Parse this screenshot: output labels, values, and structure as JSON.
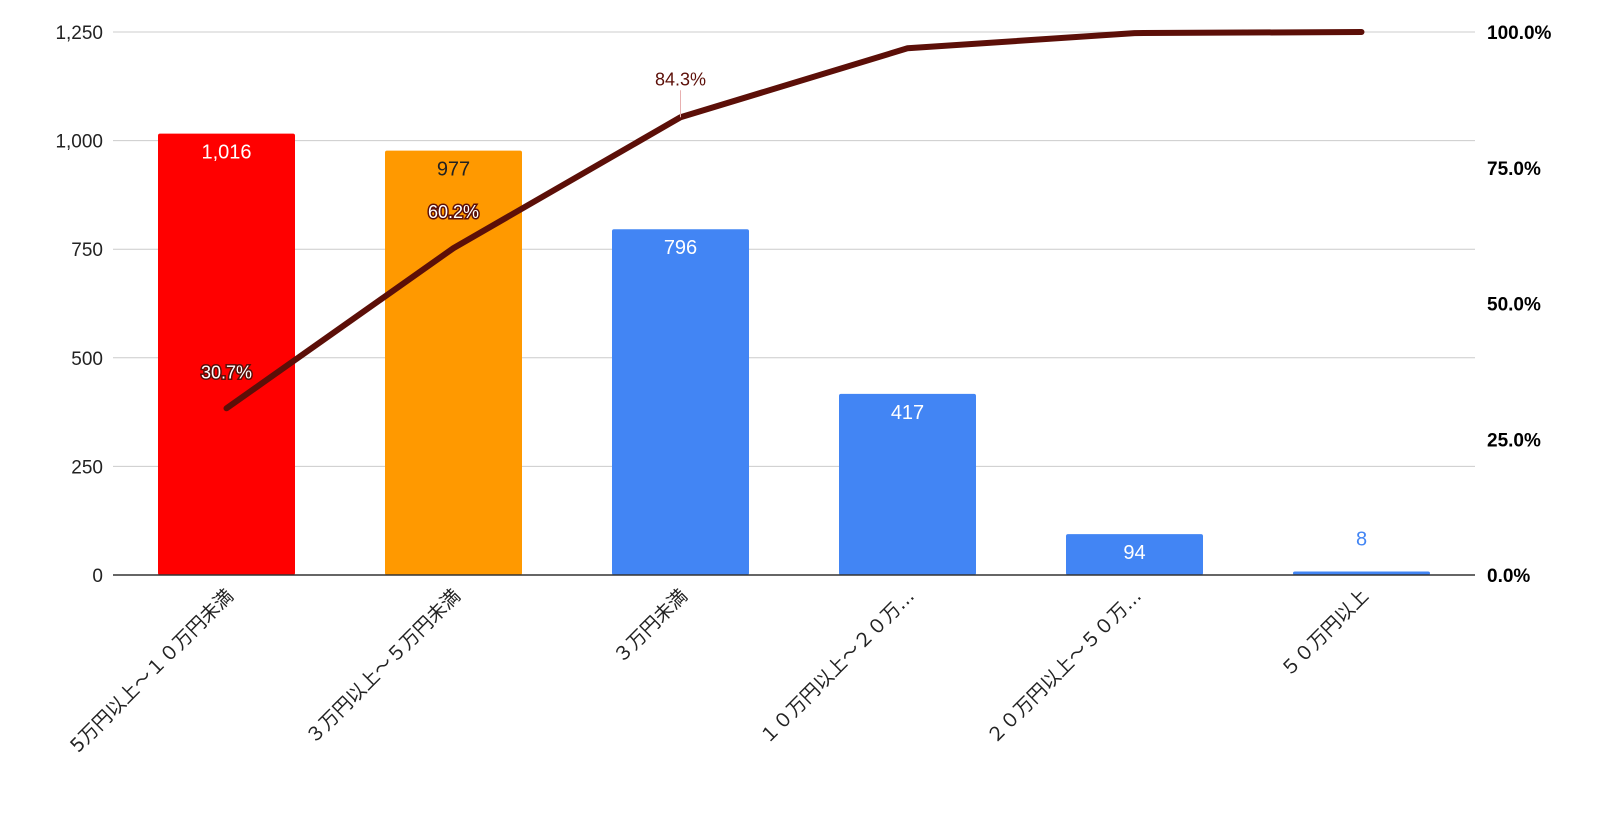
{
  "chart_data": {
    "type": "bar",
    "categories": [
      "5万円以上～１０万円未満",
      "３万円以上～５万円未満",
      "３万円未満",
      "１０万円以上～２０万…",
      "２０万円以上～５０万…",
      "５０万円以上"
    ],
    "series": [
      {
        "values": [
          1016,
          977,
          796,
          417,
          94,
          8
        ],
        "data_labels": [
          "1,016",
          "977",
          "796",
          "417",
          "94",
          "8"
        ],
        "colors": [
          "#ff0000",
          "#ff9900",
          "#4285f4",
          "#4285f4",
          "#4285f4",
          "#4285f4"
        ],
        "label_colors": [
          "#ffffff",
          "#222222",
          "#ffffff",
          "#ffffff",
          "#ffffff",
          "#4285f4"
        ],
        "axis": "left"
      },
      {
        "type": "line",
        "values": [
          30.7,
          60.2,
          84.3,
          97.0,
          99.8,
          100.0
        ],
        "data_labels": [
          "30.7%",
          "60.2%",
          "84.3%",
          "",
          "",
          ""
        ],
        "color": "#5c0f08",
        "axis": "right"
      }
    ],
    "yaxis_left": {
      "ylim": [
        0,
        1250
      ],
      "ticks": [
        "0",
        "250",
        "500",
        "750",
        "1,000",
        "1,250"
      ]
    },
    "yaxis_right": {
      "ylim": [
        0,
        100
      ],
      "ticks": [
        "0.0%",
        "25.0%",
        "50.0%",
        "75.0%",
        "100.0%"
      ]
    },
    "grid": true,
    "legend": "none"
  }
}
